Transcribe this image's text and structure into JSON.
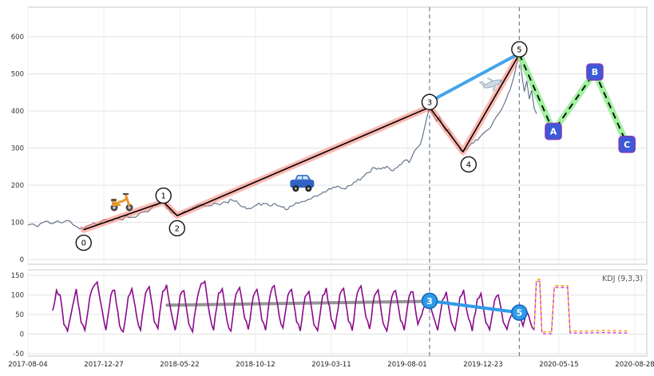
{
  "chart_data": {
    "type": "line",
    "title": "",
    "x_axis": {
      "tick_labels": [
        "2017-08-04",
        "2017-12-27",
        "2018-05-22",
        "2018-10-12",
        "2019-03-11",
        "2019-08-01",
        "2019-12-23",
        "2020-05-15",
        "2020-08-28"
      ]
    },
    "vlines": {
      "color": "#6b7f9e",
      "dash": "5 4",
      "x": [
        0.649,
        0.794
      ]
    },
    "panels": [
      {
        "name": "price",
        "yticks": [
          0,
          100,
          200,
          300,
          400,
          500,
          600
        ],
        "ylim": [
          0,
          680
        ],
        "price_series": {
          "name": "close",
          "color": "#5c6a84",
          "points": [
            [
              0.0,
              92
            ],
            [
              0.008,
              96
            ],
            [
              0.016,
              88
            ],
            [
              0.024,
              99
            ],
            [
              0.032,
              103
            ],
            [
              0.04,
              97
            ],
            [
              0.048,
              104
            ],
            [
              0.056,
              99
            ],
            [
              0.064,
              105
            ],
            [
              0.072,
              95
            ],
            [
              0.08,
              87
            ],
            [
              0.09,
              80
            ],
            [
              0.098,
              92
            ],
            [
              0.106,
              99
            ],
            [
              0.114,
              95
            ],
            [
              0.122,
              107
            ],
            [
              0.13,
              103
            ],
            [
              0.14,
              111
            ],
            [
              0.15,
              107
            ],
            [
              0.16,
              118
            ],
            [
              0.17,
              114
            ],
            [
              0.18,
              123
            ],
            [
              0.19,
              129
            ],
            [
              0.2,
              139
            ],
            [
              0.21,
              148
            ],
            [
              0.219,
              155
            ],
            [
              0.228,
              136
            ],
            [
              0.235,
              125
            ],
            [
              0.241,
              118
            ],
            [
              0.25,
              127
            ],
            [
              0.26,
              134
            ],
            [
              0.27,
              141
            ],
            [
              0.28,
              149
            ],
            [
              0.29,
              144
            ],
            [
              0.3,
              151
            ],
            [
              0.31,
              147
            ],
            [
              0.32,
              154
            ],
            [
              0.33,
              160
            ],
            [
              0.34,
              151
            ],
            [
              0.35,
              142
            ],
            [
              0.36,
              137
            ],
            [
              0.37,
              147
            ],
            [
              0.38,
              151
            ],
            [
              0.39,
              144
            ],
            [
              0.4,
              150
            ],
            [
              0.41,
              141
            ],
            [
              0.42,
              135
            ],
            [
              0.43,
              147
            ],
            [
              0.44,
              154
            ],
            [
              0.45,
              159
            ],
            [
              0.46,
              167
            ],
            [
              0.47,
              174
            ],
            [
              0.48,
              181
            ],
            [
              0.49,
              189
            ],
            [
              0.5,
              197
            ],
            [
              0.51,
              191
            ],
            [
              0.52,
              199
            ],
            [
              0.53,
              209
            ],
            [
              0.54,
              221
            ],
            [
              0.55,
              234
            ],
            [
              0.56,
              247
            ],
            [
              0.57,
              243
            ],
            [
              0.58,
              251
            ],
            [
              0.59,
              239
            ],
            [
              0.6,
              254
            ],
            [
              0.61,
              268
            ],
            [
              0.616,
              261
            ],
            [
              0.622,
              283
            ],
            [
              0.628,
              299
            ],
            [
              0.634,
              311
            ],
            [
              0.64,
              349
            ],
            [
              0.645,
              385
            ],
            [
              0.649,
              410
            ],
            [
              0.654,
              391
            ],
            [
              0.66,
              372
            ],
            [
              0.665,
              384
            ],
            [
              0.67,
              361
            ],
            [
              0.675,
              346
            ],
            [
              0.68,
              351
            ],
            [
              0.685,
              331
            ],
            [
              0.69,
              319
            ],
            [
              0.696,
              305
            ],
            [
              0.703,
              290
            ],
            [
              0.71,
              299
            ],
            [
              0.72,
              314
            ],
            [
              0.73,
              329
            ],
            [
              0.74,
              346
            ],
            [
              0.75,
              364
            ],
            [
              0.76,
              391
            ],
            [
              0.77,
              421
            ],
            [
              0.776,
              447
            ],
            [
              0.782,
              474
            ],
            [
              0.788,
              512
            ],
            [
              0.794,
              553
            ],
            [
              0.798,
              498
            ],
            [
              0.802,
              452
            ],
            [
              0.806,
              481
            ],
            [
              0.81,
              432
            ],
            [
              0.814,
              456
            ],
            [
              0.818,
              408
            ],
            [
              0.822,
              392
            ]
          ]
        },
        "elliott_impulse": {
          "line_color": "#000000",
          "glow_color": "#fa8072",
          "points": [
            [
              0.09,
              80
            ],
            [
              0.219,
              155
            ],
            [
              0.241,
              118
            ],
            [
              0.649,
              410
            ],
            [
              0.703,
              290
            ],
            [
              0.794,
              553
            ]
          ],
          "markers": [
            {
              "label": "0",
              "x": 0.09,
              "y": 45
            },
            {
              "label": "1",
              "x": 0.219,
              "y": 172
            },
            {
              "label": "2",
              "x": 0.241,
              "y": 84
            },
            {
              "label": "3",
              "x": 0.649,
              "y": 424
            },
            {
              "label": "4",
              "x": 0.712,
              "y": 256
            },
            {
              "label": "5",
              "x": 0.794,
              "y": 566
            }
          ]
        },
        "elliott_correction": {
          "line_color": "#000000",
          "glow_color": "#90ee90",
          "dash": "8 6",
          "points": [
            [
              0.794,
              553
            ],
            [
              0.849,
              345
            ],
            [
              0.916,
              505
            ],
            [
              0.968,
              310
            ]
          ],
          "markers": [
            {
              "label": "A",
              "x": 0.849,
              "y": 345
            },
            {
              "label": "B",
              "x": 0.916,
              "y": 505
            },
            {
              "label": "C",
              "x": 0.968,
              "y": 310
            }
          ],
          "marker_fill": "#3d59d6",
          "marker_border": "#7a3fbf"
        },
        "trendline_3_to_5": {
          "color": "#2f9be8",
          "from": [
            0.649,
            425
          ],
          "to": [
            0.794,
            555
          ]
        },
        "icons": [
          {
            "name": "scooter",
            "x": 0.151,
            "y": 157
          },
          {
            "name": "car",
            "x": 0.443,
            "y": 204
          },
          {
            "name": "plane",
            "x": 0.751,
            "y": 473
          }
        ]
      },
      {
        "name": "kdj",
        "legend": "KDJ (9,3,3)",
        "yticks": [
          -50,
          0,
          50,
          100,
          150
        ],
        "ylim": [
          -56,
          160
        ],
        "kdj_series": {
          "color": "#8b0a8b",
          "points": [
            [
              0.04,
              60
            ],
            [
              0.046,
              112
            ],
            [
              0.052,
              100
            ],
            [
              0.058,
              25
            ],
            [
              0.064,
              8
            ],
            [
              0.072,
              70
            ],
            [
              0.078,
              115
            ],
            [
              0.086,
              30
            ],
            [
              0.092,
              10
            ],
            [
              0.1,
              95
            ],
            [
              0.106,
              122
            ],
            [
              0.112,
              133
            ],
            [
              0.12,
              60
            ],
            [
              0.126,
              10
            ],
            [
              0.134,
              100
            ],
            [
              0.14,
              112
            ],
            [
              0.148,
              22
            ],
            [
              0.154,
              6
            ],
            [
              0.162,
              95
            ],
            [
              0.168,
              116
            ],
            [
              0.176,
              42
            ],
            [
              0.182,
              10
            ],
            [
              0.19,
              105
            ],
            [
              0.196,
              121
            ],
            [
              0.204,
              32
            ],
            [
              0.21,
              14
            ],
            [
              0.218,
              110
            ],
            [
              0.224,
              126
            ],
            [
              0.232,
              52
            ],
            [
              0.238,
              10
            ],
            [
              0.246,
              100
            ],
            [
              0.252,
              111
            ],
            [
              0.26,
              26
            ],
            [
              0.266,
              6
            ],
            [
              0.274,
              96
            ],
            [
              0.28,
              129
            ],
            [
              0.286,
              135
            ],
            [
              0.294,
              46
            ],
            [
              0.3,
              10
            ],
            [
              0.308,
              105
            ],
            [
              0.314,
              116
            ],
            [
              0.322,
              31
            ],
            [
              0.328,
              8
            ],
            [
              0.336,
              101
            ],
            [
              0.342,
              119
            ],
            [
              0.35,
              41
            ],
            [
              0.356,
              12
            ],
            [
              0.364,
              96
            ],
            [
              0.37,
              114
            ],
            [
              0.378,
              36
            ],
            [
              0.384,
              10
            ],
            [
              0.392,
              104
            ],
            [
              0.398,
              124
            ],
            [
              0.406,
              46
            ],
            [
              0.412,
              16
            ],
            [
              0.42,
              99
            ],
            [
              0.426,
              114
            ],
            [
              0.434,
              31
            ],
            [
              0.44,
              8
            ],
            [
              0.448,
              96
            ],
            [
              0.454,
              109
            ],
            [
              0.462,
              24
            ],
            [
              0.468,
              9
            ],
            [
              0.476,
              98
            ],
            [
              0.482,
              118
            ],
            [
              0.49,
              38
            ],
            [
              0.496,
              12
            ],
            [
              0.504,
              102
            ],
            [
              0.51,
              117
            ],
            [
              0.518,
              33
            ],
            [
              0.524,
              9
            ],
            [
              0.532,
              104
            ],
            [
              0.538,
              123
            ],
            [
              0.546,
              44
            ],
            [
              0.552,
              13
            ],
            [
              0.56,
              99
            ],
            [
              0.566,
              113
            ],
            [
              0.574,
              28
            ],
            [
              0.58,
              8
            ],
            [
              0.588,
              95
            ],
            [
              0.594,
              111
            ],
            [
              0.602,
              35
            ],
            [
              0.608,
              10
            ],
            [
              0.616,
              97
            ],
            [
              0.622,
              108
            ],
            [
              0.63,
              25
            ],
            [
              0.636,
              48
            ],
            [
              0.642,
              75
            ],
            [
              0.649,
              85
            ],
            [
              0.656,
              41
            ],
            [
              0.662,
              10
            ],
            [
              0.67,
              88
            ],
            [
              0.676,
              108
            ],
            [
              0.684,
              31
            ],
            [
              0.69,
              10
            ],
            [
              0.698,
              94
            ],
            [
              0.704,
              113
            ],
            [
              0.712,
              40
            ],
            [
              0.718,
              8
            ],
            [
              0.726,
              89
            ],
            [
              0.732,
              104
            ],
            [
              0.74,
              29
            ],
            [
              0.746,
              11
            ],
            [
              0.754,
              86
            ],
            [
              0.76,
              100
            ],
            [
              0.768,
              31
            ],
            [
              0.774,
              12
            ],
            [
              0.78,
              45
            ],
            [
              0.787,
              58
            ],
            [
              0.794,
              55
            ],
            [
              0.8,
              21
            ],
            [
              0.806,
              58
            ],
            [
              0.812,
              30
            ],
            [
              0.818,
              12
            ]
          ]
        },
        "baseline": {
          "color": "#8a8a8a",
          "from": [
            0.225,
            74
          ],
          "to": [
            0.66,
            84
          ]
        },
        "divergence": {
          "color": "#2f9be8",
          "from": [
            0.649,
            85
          ],
          "to": [
            0.794,
            55
          ],
          "markers": [
            {
              "label": "3",
              "x": 0.649,
              "y": 85
            },
            {
              "label": "5",
              "x": 0.794,
              "y": 55
            }
          ]
        },
        "forecast": {
          "colors": [
            "#ff9f1a",
            "#cc33cc"
          ],
          "dash": "4 3",
          "points": [
            [
              0.818,
              14
            ],
            [
              0.8215,
              140
            ],
            [
              0.827,
              140
            ],
            [
              0.8305,
              6
            ],
            [
              0.846,
              6
            ],
            [
              0.8505,
              124
            ],
            [
              0.872,
              124
            ],
            [
              0.876,
              8
            ],
            [
              0.9,
              8
            ],
            [
              0.93,
              9
            ],
            [
              0.968,
              8
            ]
          ]
        }
      }
    ]
  }
}
